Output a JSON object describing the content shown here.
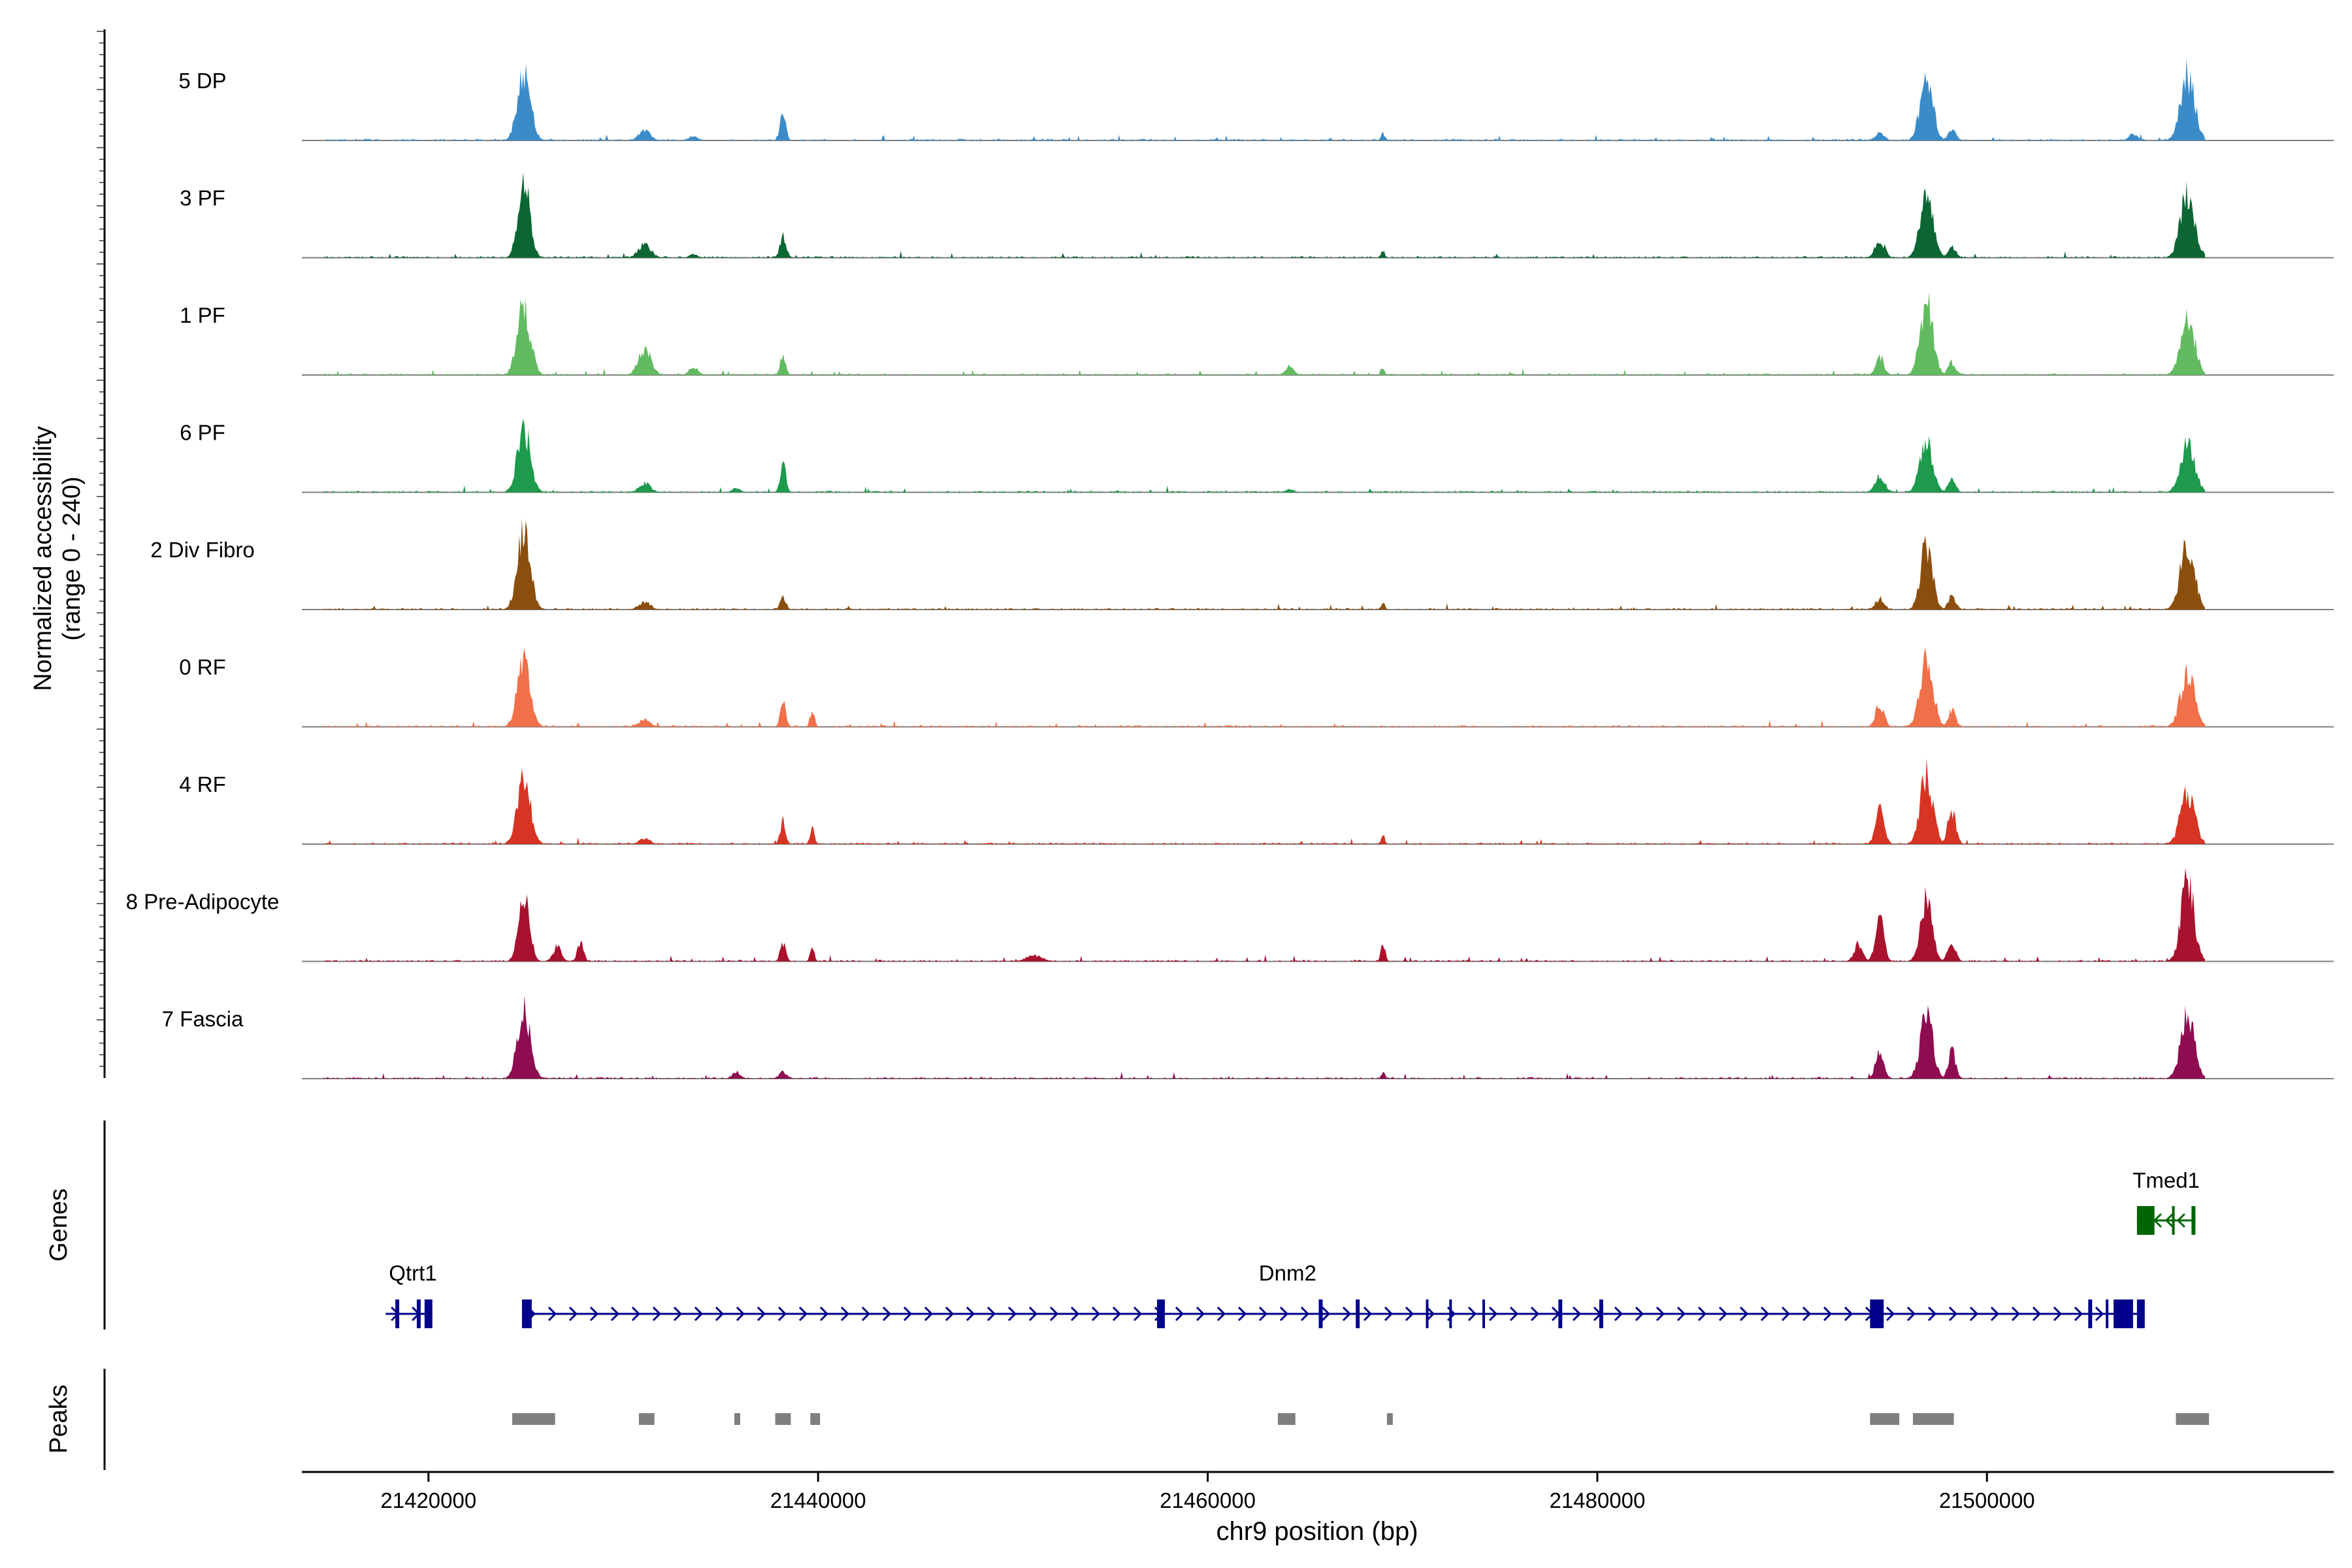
{
  "chart_data": {
    "type": "coverage-track",
    "title": "",
    "ylabel_line1": "Normalized accessibility",
    "ylabel_line2": "(range 0 - 240)",
    "genes_label": "Genes",
    "peaks_label": "Peaks",
    "xlabel": "chr9 position (bp)",
    "x_range": [
      21413500,
      21517800
    ],
    "y_range": [
      0,
      240
    ],
    "x_ticks": [
      21420000,
      21440000,
      21460000,
      21480000,
      21500000
    ],
    "x_tick_labels": [
      "21420000",
      "21440000",
      "21460000",
      "21480000",
      "21500000"
    ],
    "region": {
      "start": 21414600,
      "end": 21511200
    },
    "tracks": [
      {
        "name": "5 DP",
        "color": "#3B8BC8",
        "peaks": [
          [
            21424900,
            220,
            330
          ],
          [
            21431100,
            30,
            300
          ],
          [
            21433600,
            14,
            220
          ],
          [
            21438200,
            95,
            140
          ],
          [
            21469000,
            24,
            90
          ],
          [
            21494500,
            28,
            220
          ],
          [
            21496900,
            200,
            320
          ],
          [
            21498200,
            35,
            200
          ],
          [
            21507500,
            20,
            220
          ],
          [
            21510300,
            205,
            360
          ]
        ]
      },
      {
        "name": "3 PF",
        "color": "#0B6633",
        "peaks": [
          [
            21424900,
            240,
            300
          ],
          [
            21431100,
            42,
            320
          ],
          [
            21433600,
            10,
            220
          ],
          [
            21438200,
            70,
            160
          ],
          [
            21469000,
            22,
            90
          ],
          [
            21494500,
            55,
            250
          ],
          [
            21496900,
            195,
            330
          ],
          [
            21498200,
            35,
            200
          ],
          [
            21510300,
            210,
            360
          ]
        ]
      },
      {
        "name": "1 PF",
        "color": "#62BB60",
        "peaks": [
          [
            21424900,
            215,
            330
          ],
          [
            21431100,
            82,
            320
          ],
          [
            21433600,
            26,
            220
          ],
          [
            21438200,
            62,
            140
          ],
          [
            21464200,
            28,
            220
          ],
          [
            21469000,
            20,
            90
          ],
          [
            21494500,
            60,
            200
          ],
          [
            21496900,
            225,
            330
          ],
          [
            21498200,
            40,
            200
          ],
          [
            21510300,
            180,
            360
          ]
        ]
      },
      {
        "name": "6 PF",
        "color": "#1D9A4C",
        "peaks": [
          [
            21424900,
            200,
            330
          ],
          [
            21431100,
            28,
            300
          ],
          [
            21435800,
            14,
            200
          ],
          [
            21438200,
            95,
            140
          ],
          [
            21464200,
            10,
            220
          ],
          [
            21494500,
            50,
            250
          ],
          [
            21496900,
            165,
            330
          ],
          [
            21498200,
            40,
            200
          ],
          [
            21510300,
            150,
            360
          ]
        ]
      },
      {
        "name": "2 Div Fibro",
        "color": "#8B4E0C",
        "peaks": [
          [
            21424900,
            245,
            330
          ],
          [
            21431100,
            24,
            300
          ],
          [
            21438200,
            44,
            140
          ],
          [
            21469000,
            22,
            90
          ],
          [
            21494500,
            35,
            220
          ],
          [
            21496900,
            205,
            300
          ],
          [
            21498200,
            40,
            200
          ],
          [
            21510300,
            210,
            360
          ]
        ]
      },
      {
        "name": "0 RF",
        "color": "#F0704A",
        "peaks": [
          [
            21424900,
            210,
            330
          ],
          [
            21431100,
            22,
            300
          ],
          [
            21438200,
            82,
            140
          ],
          [
            21439700,
            55,
            110
          ],
          [
            21494500,
            70,
            220
          ],
          [
            21496900,
            225,
            330
          ],
          [
            21498200,
            50,
            200
          ],
          [
            21510300,
            165,
            360
          ]
        ]
      },
      {
        "name": "4 RF",
        "color": "#D63524",
        "peaks": [
          [
            21424900,
            215,
            330
          ],
          [
            21431100,
            16,
            300
          ],
          [
            21438200,
            70,
            140
          ],
          [
            21439700,
            55,
            110
          ],
          [
            21469000,
            30,
            90
          ],
          [
            21494500,
            110,
            220
          ],
          [
            21496900,
            215,
            330
          ],
          [
            21498200,
            110,
            200
          ],
          [
            21510300,
            160,
            360
          ]
        ]
      },
      {
        "name": "8 Pre-Adipocyte",
        "color": "#A9122E",
        "peaks": [
          [
            21424900,
            210,
            280
          ],
          [
            21426600,
            45,
            220
          ],
          [
            21427800,
            65,
            160
          ],
          [
            21438200,
            60,
            140
          ],
          [
            21439700,
            42,
            110
          ],
          [
            21451100,
            20,
            400
          ],
          [
            21469000,
            60,
            110
          ],
          [
            21493400,
            55,
            220
          ],
          [
            21494500,
            130,
            220
          ],
          [
            21496900,
            190,
            300
          ],
          [
            21498200,
            60,
            200
          ],
          [
            21510300,
            250,
            330
          ]
        ]
      },
      {
        "name": "7 Fascia",
        "color": "#8E0C50",
        "peaks": [
          [
            21424900,
            210,
            330
          ],
          [
            21435800,
            22,
            200
          ],
          [
            21438200,
            22,
            200
          ],
          [
            21469000,
            22,
            90
          ],
          [
            21494500,
            85,
            220
          ],
          [
            21496900,
            190,
            330
          ],
          [
            21498200,
            85,
            200
          ],
          [
            21510300,
            190,
            360
          ]
        ]
      }
    ],
    "genes": [
      {
        "name": "Qtrt1",
        "strand": "+",
        "start": 21417800,
        "end": 21420200,
        "color": "#00008B",
        "exons": [
          [
            21418300,
            21418500
          ],
          [
            21419400,
            21419600
          ],
          [
            21419800,
            21420200
          ]
        ]
      },
      {
        "name": "Dnm2",
        "strand": "+",
        "start": 21424800,
        "end": 21508100,
        "color": "#00008B",
        "exons": [
          [
            21424800,
            21425300
          ],
          [
            21457400,
            21457800
          ],
          [
            21465700,
            21465900
          ],
          [
            21467600,
            21467800
          ],
          [
            21471200,
            21471300
          ],
          [
            21472400,
            21472500
          ],
          [
            21474100,
            21474200
          ],
          [
            21478000,
            21478200
          ],
          [
            21480100,
            21480300
          ],
          [
            21494000,
            21494700
          ],
          [
            21505200,
            21505400
          ],
          [
            21506100,
            21506200
          ],
          [
            21506500,
            21507500
          ],
          [
            21507700,
            21508100
          ]
        ]
      },
      {
        "name": "Tmed1",
        "strand": "-",
        "start": 21507700,
        "end": 21510700,
        "color": "#006400",
        "exons": [
          [
            21507700,
            21508600
          ],
          [
            21509500,
            21509600
          ],
          [
            21510500,
            21510700
          ]
        ]
      }
    ],
    "peak_regions": [
      [
        21424300,
        21426500
      ],
      [
        21430800,
        21431600
      ],
      [
        21435700,
        21436000
      ],
      [
        21437800,
        21438600
      ],
      [
        21439600,
        21440100
      ],
      [
        21463600,
        21464500
      ],
      [
        21469200,
        21469500
      ],
      [
        21494000,
        21495500
      ],
      [
        21496200,
        21498300
      ],
      [
        21509700,
        21511400
      ]
    ]
  }
}
